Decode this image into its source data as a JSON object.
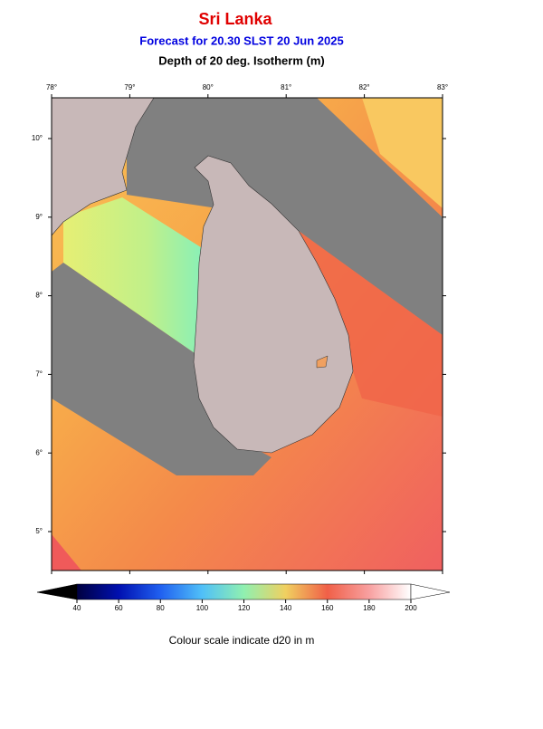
{
  "header": {
    "title": "Sri Lanka",
    "subtitle": "Forecast for  20.30 SLST 20 Jun 2025",
    "variable": "Depth of 20 deg. Isotherm (m)"
  },
  "map": {
    "lon_labels": [
      {
        "value": 78,
        "label": "78°"
      },
      {
        "value": 79,
        "label": "79°"
      },
      {
        "value": 80,
        "label": "80°"
      },
      {
        "value": 81,
        "label": "81°"
      },
      {
        "value": 82,
        "label": "82°"
      },
      {
        "value": 83,
        "label": "83°"
      }
    ],
    "lat_labels": [
      {
        "value": 10,
        "label": "10°"
      },
      {
        "value": 9,
        "label": "9°"
      },
      {
        "value": 8,
        "label": "8°"
      },
      {
        "value": 7,
        "label": "7°"
      },
      {
        "value": 6,
        "label": "6°"
      },
      {
        "value": 5,
        "label": "5°"
      }
    ]
  },
  "colorbar": {
    "ticks": [
      40,
      60,
      80,
      100,
      120,
      140,
      160,
      180,
      200
    ],
    "caption": "Colour scale indicate d20 in m"
  }
}
